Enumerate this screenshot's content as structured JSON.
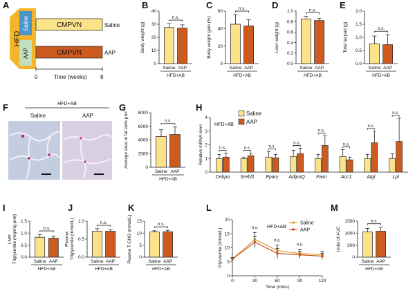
{
  "colors": {
    "saline": "#FCE38A",
    "aap": "#CD5A1E",
    "outline": "#333333",
    "hfd": "#F5B52B",
    "saline_box": "#4C95CB",
    "aap_box": "#BFDFBF",
    "line_saline": "#E0A030",
    "line_aap": "#C45018"
  },
  "panel_letters": [
    "A",
    "B",
    "C",
    "D",
    "E",
    "F",
    "G",
    "H",
    "I",
    "J",
    "K",
    "L",
    "M"
  ],
  "schematic": {
    "hfd_label": "HFD",
    "saline_label": "Saline",
    "aap_label": "AAP",
    "bar_label_top": "CMPVN",
    "bar_label_bottom": "CMPVN",
    "right_label_top": "Saline",
    "right_label_bottom": "AAP",
    "axis_start": "0",
    "axis_end": "8",
    "axis_title": "Time (weeks)"
  },
  "histology": {
    "group_label": "HFD+AB",
    "left_label": "Saline",
    "right_label": "AAP"
  },
  "h_legend": {
    "saline": "Saline",
    "aap": "AAP"
  },
  "chart_data": [
    {
      "panel": "B",
      "type": "bar",
      "ylabel": "Body weight (g)",
      "ylim": [
        0,
        40
      ],
      "yticks": [
        "0",
        "10",
        "20",
        "30",
        "40"
      ],
      "categories": [
        "Saline",
        "AAP"
      ],
      "values": [
        27.5,
        27
      ],
      "errors": [
        3,
        2.5
      ],
      "sig": "n.s.",
      "group": "HFD+AB"
    },
    {
      "panel": "C",
      "type": "bar",
      "ylabel": "Body weight gain (%)",
      "ylim": [
        0,
        60
      ],
      "yticks": [
        "0",
        "20",
        "40",
        "60"
      ],
      "categories": [
        "Saline",
        "AAP"
      ],
      "values": [
        45,
        43
      ],
      "errors": [
        11,
        7
      ],
      "sig": "n.s.",
      "group": "HFD+AB"
    },
    {
      "panel": "D",
      "type": "bar",
      "ylabel": "Liver weight (g)",
      "ylim": [
        0,
        1.0
      ],
      "yticks": [
        "0.0",
        "0.2",
        "0.4",
        "0.6",
        "0.8",
        "1.0"
      ],
      "categories": [
        "Saline",
        "AAP"
      ],
      "values": [
        0.85,
        0.82
      ],
      "errors": [
        0.05,
        0.04
      ],
      "sig": "n.s.",
      "group": "HFD+AB"
    },
    {
      "panel": "E",
      "type": "bar",
      "ylabel": "Total fat pad (g)",
      "ylim": [
        0,
        2.0
      ],
      "yticks": [
        "0.0",
        "0.5",
        "1.0",
        "1.5",
        "2.0"
      ],
      "categories": [
        "Saline",
        "AAP"
      ],
      "values": [
        0.75,
        0.72
      ],
      "errors": [
        0.3,
        0.38
      ],
      "sig": "n.s.",
      "group": "HFD+AB"
    },
    {
      "panel": "G",
      "type": "bar",
      "ylabel": "Average area of fat cells μm²",
      "ylim": [
        0,
        8000
      ],
      "yticks": [
        "0",
        "2000",
        "4000",
        "6000",
        "8000"
      ],
      "categories": [
        "Saline",
        "AAP"
      ],
      "values": [
        4500,
        4800
      ],
      "errors": [
        1000,
        1100
      ],
      "sig": "n.s.",
      "group": "HFD+AB"
    },
    {
      "panel": "H",
      "type": "bar",
      "ylabel": "Relative mRNA level",
      "ylim": [
        0,
        4
      ],
      "yticks": [
        "0",
        "1",
        "2",
        "3",
        "4"
      ],
      "inner_label": "HFD+AB",
      "categories": [
        "Cebpα",
        "Srebf1",
        "Pparγ",
        "AdipoQ",
        "Fasn",
        "Acc1",
        "Atgl",
        "Lpl"
      ],
      "series": [
        {
          "name": "Saline",
          "values": [
            1.0,
            1.0,
            1.1,
            1.15,
            1.0,
            1.15,
            1.0,
            1.0
          ],
          "errors": [
            0.3,
            0.1,
            0.4,
            0.45,
            0.3,
            0.5,
            0.3,
            0.35
          ]
        },
        {
          "name": "AAP",
          "values": [
            1.1,
            1.2,
            1.05,
            1.35,
            1.95,
            0.9,
            2.15,
            2.25
          ],
          "errors": [
            0.3,
            0.2,
            0.25,
            0.4,
            0.7,
            0.2,
            0.85,
            1.7
          ]
        }
      ],
      "sigs": [
        "n.s.",
        "n.s.",
        "n.s.",
        "n.s.",
        "n.s.",
        "n.s.",
        "n.s.",
        "n.s."
      ]
    },
    {
      "panel": "I",
      "type": "bar",
      "ylabel": "Liver\nTriglyceride (mg/mg prot)",
      "ylim": [
        0,
        1.5
      ],
      "yticks": [
        "0.0",
        "0.5",
        "1.0",
        "1.5"
      ],
      "categories": [
        "Saline",
        "AAP"
      ],
      "values": [
        0.83,
        0.79
      ],
      "errors": [
        0.12,
        0.08
      ],
      "sig": "n.s.",
      "group": "HFD+AB"
    },
    {
      "panel": "J",
      "type": "bar",
      "ylabel": "Plasma\nTriglyceride (mmol/L)",
      "ylim": [
        0,
        1.0
      ],
      "yticks": [
        "0.0",
        "0.5",
        "1.0"
      ],
      "categories": [
        "Saline",
        "AAP"
      ],
      "values": [
        0.72,
        0.72
      ],
      "errors": [
        0.07,
        0.04
      ],
      "sig": "n.s.",
      "group": "HFD+AB"
    },
    {
      "panel": "K",
      "type": "bar",
      "ylabel": "Plasma T-CHO (mmol/L)",
      "ylim": [
        0,
        15
      ],
      "yticks": [
        "0",
        "5",
        "10",
        "15"
      ],
      "categories": [
        "Saline",
        "AAP"
      ],
      "values": [
        10.5,
        10.6
      ],
      "errors": [
        0.5,
        0.6
      ],
      "sig": "n.s.",
      "group": "HFD+AB"
    },
    {
      "panel": "L",
      "type": "line",
      "ylabel": "Glycaemia (mmol/L)",
      "xlabel": "Time (mins)",
      "ylim": [
        0,
        20
      ],
      "yticks": [
        "0",
        "5",
        "10",
        "15",
        "20"
      ],
      "xlim": [
        0,
        120
      ],
      "xticks": [
        "0",
        "30",
        "60",
        "90",
        "120"
      ],
      "inner_label": "HFD+AB",
      "x": [
        0,
        30,
        60,
        90,
        120
      ],
      "series": [
        {
          "name": "Saline",
          "values": [
            6,
            13,
            9,
            8,
            7.5
          ],
          "errors": [
            0.5,
            2.5,
            2,
            1.5,
            1.2
          ]
        },
        {
          "name": "AAP",
          "values": [
            6,
            12,
            8,
            7.5,
            7
          ],
          "errors": [
            0.5,
            2,
            1.8,
            1.2,
            1
          ]
        }
      ],
      "sigs": [
        "n.s.",
        "n.s.",
        "n.s.",
        "n.s."
      ]
    },
    {
      "panel": "M",
      "type": "bar",
      "ylabel": "Units of AUC",
      "ylim": [
        0,
        1500
      ],
      "yticks": [
        "0",
        "500",
        "1000",
        "1500"
      ],
      "categories": [
        "Saline",
        "AAP"
      ],
      "values": [
        1050,
        1080
      ],
      "errors": [
        150,
        170
      ],
      "sig": "n.s.",
      "group": "HFD+AB"
    }
  ]
}
